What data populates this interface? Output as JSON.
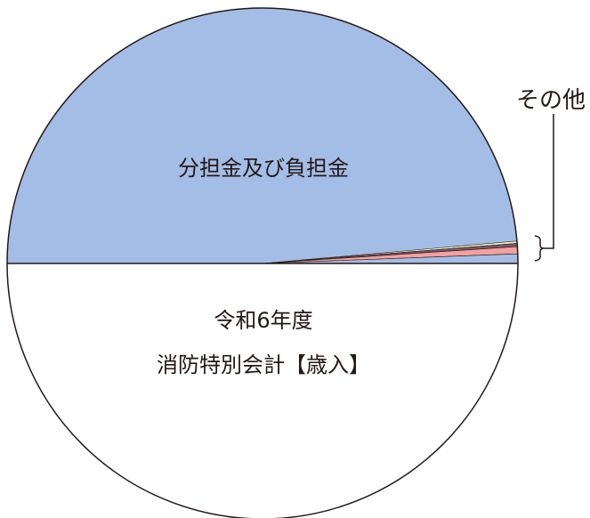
{
  "chart_data": {
    "type": "pie",
    "title": "",
    "center_title_lines": [
      "令和6年度",
      "消防特別会計【歳入】"
    ],
    "slices": [
      {
        "label": "分担金及び負担金",
        "value": 97.2,
        "color": "#a4bde6"
      },
      {
        "label": "",
        "value": 0.3,
        "color": "#f4f5c5"
      },
      {
        "label": "",
        "value": 0.4,
        "color": "#7a5a6e"
      },
      {
        "label": "",
        "value": 0.9,
        "color": "#f4a0a0"
      },
      {
        "label": "",
        "value": 1.2,
        "color": "#a4bde6"
      }
    ],
    "group_label": "その他",
    "start": "left",
    "direction": "clockwise",
    "lower_half_color": "#ffffff",
    "legend": "none"
  }
}
